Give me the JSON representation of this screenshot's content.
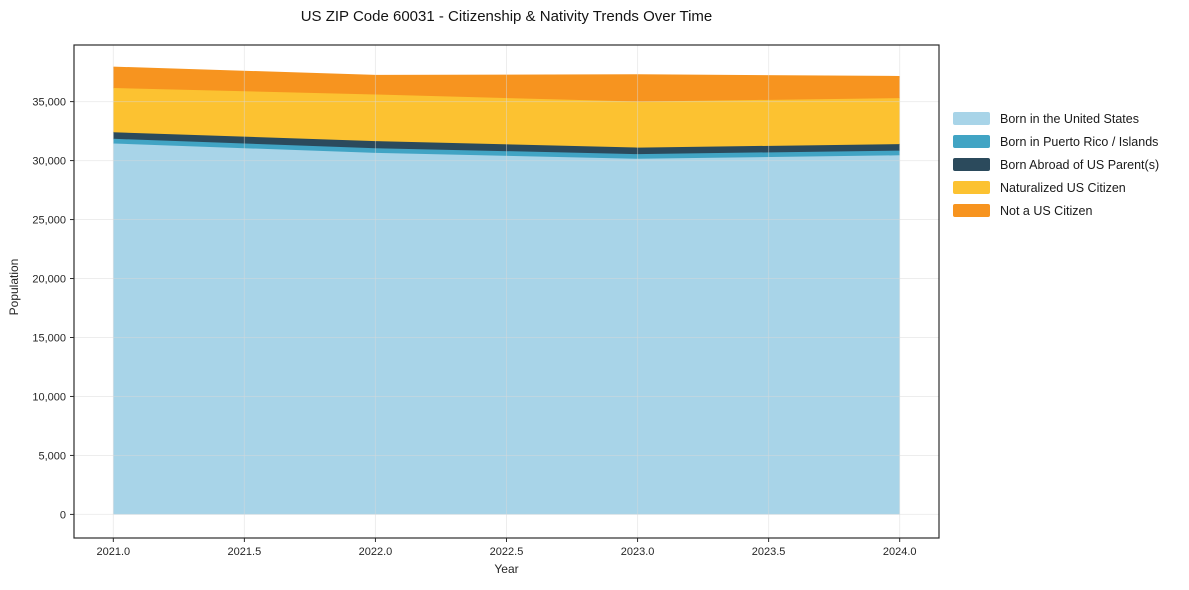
{
  "chart_data": {
    "type": "area",
    "stacked": true,
    "title": "US ZIP Code 60031 - Citizenship & Nativity Trends Over Time",
    "xlabel": "Year",
    "ylabel": "Population",
    "x": [
      2021,
      2022,
      2023,
      2024
    ],
    "series": [
      {
        "name": "Born in the United States",
        "color": "#a8d4e8",
        "values": [
          31450,
          30650,
          30150,
          30450
        ]
      },
      {
        "name": "Born in Puerto Rico / Islands",
        "color": "#41a4c4",
        "values": [
          400,
          400,
          400,
          400
        ]
      },
      {
        "name": "Born Abroad of US Parent(s)",
        "color": "#2b4a5c",
        "values": [
          550,
          600,
          550,
          550
        ]
      },
      {
        "name": "Naturalized US Citizen",
        "color": "#fcc231",
        "values": [
          3750,
          3950,
          3900,
          3900
        ]
      },
      {
        "name": "Not a US Citizen",
        "color": "#f7941f",
        "values": [
          1750,
          1600,
          2250,
          1800
        ]
      }
    ],
    "totals": [
      37900,
      37200,
      37250,
      37100
    ],
    "xlim": [
      2020.85,
      2024.15
    ],
    "ylim": [
      -2000,
      39800
    ],
    "xticks": [
      2021.0,
      2021.5,
      2022.0,
      2022.5,
      2023.0,
      2023.5,
      2024.0
    ],
    "xtick_labels": [
      "2021.0",
      "2021.5",
      "2022.0",
      "2022.5",
      "2023.0",
      "2023.5",
      "2024.0"
    ],
    "yticks": [
      0,
      5000,
      10000,
      15000,
      20000,
      25000,
      30000,
      35000
    ],
    "ytick_labels": [
      "0",
      "5,000",
      "10,000",
      "15,000",
      "20,000",
      "25,000",
      "30,000",
      "35,000"
    ],
    "grid": true,
    "legend_position": "right-outside",
    "colors": {
      "background": "#ffffff",
      "spine": "#2b2b2b",
      "grid": "#d9d9d9",
      "tick_label": "#262626"
    }
  }
}
